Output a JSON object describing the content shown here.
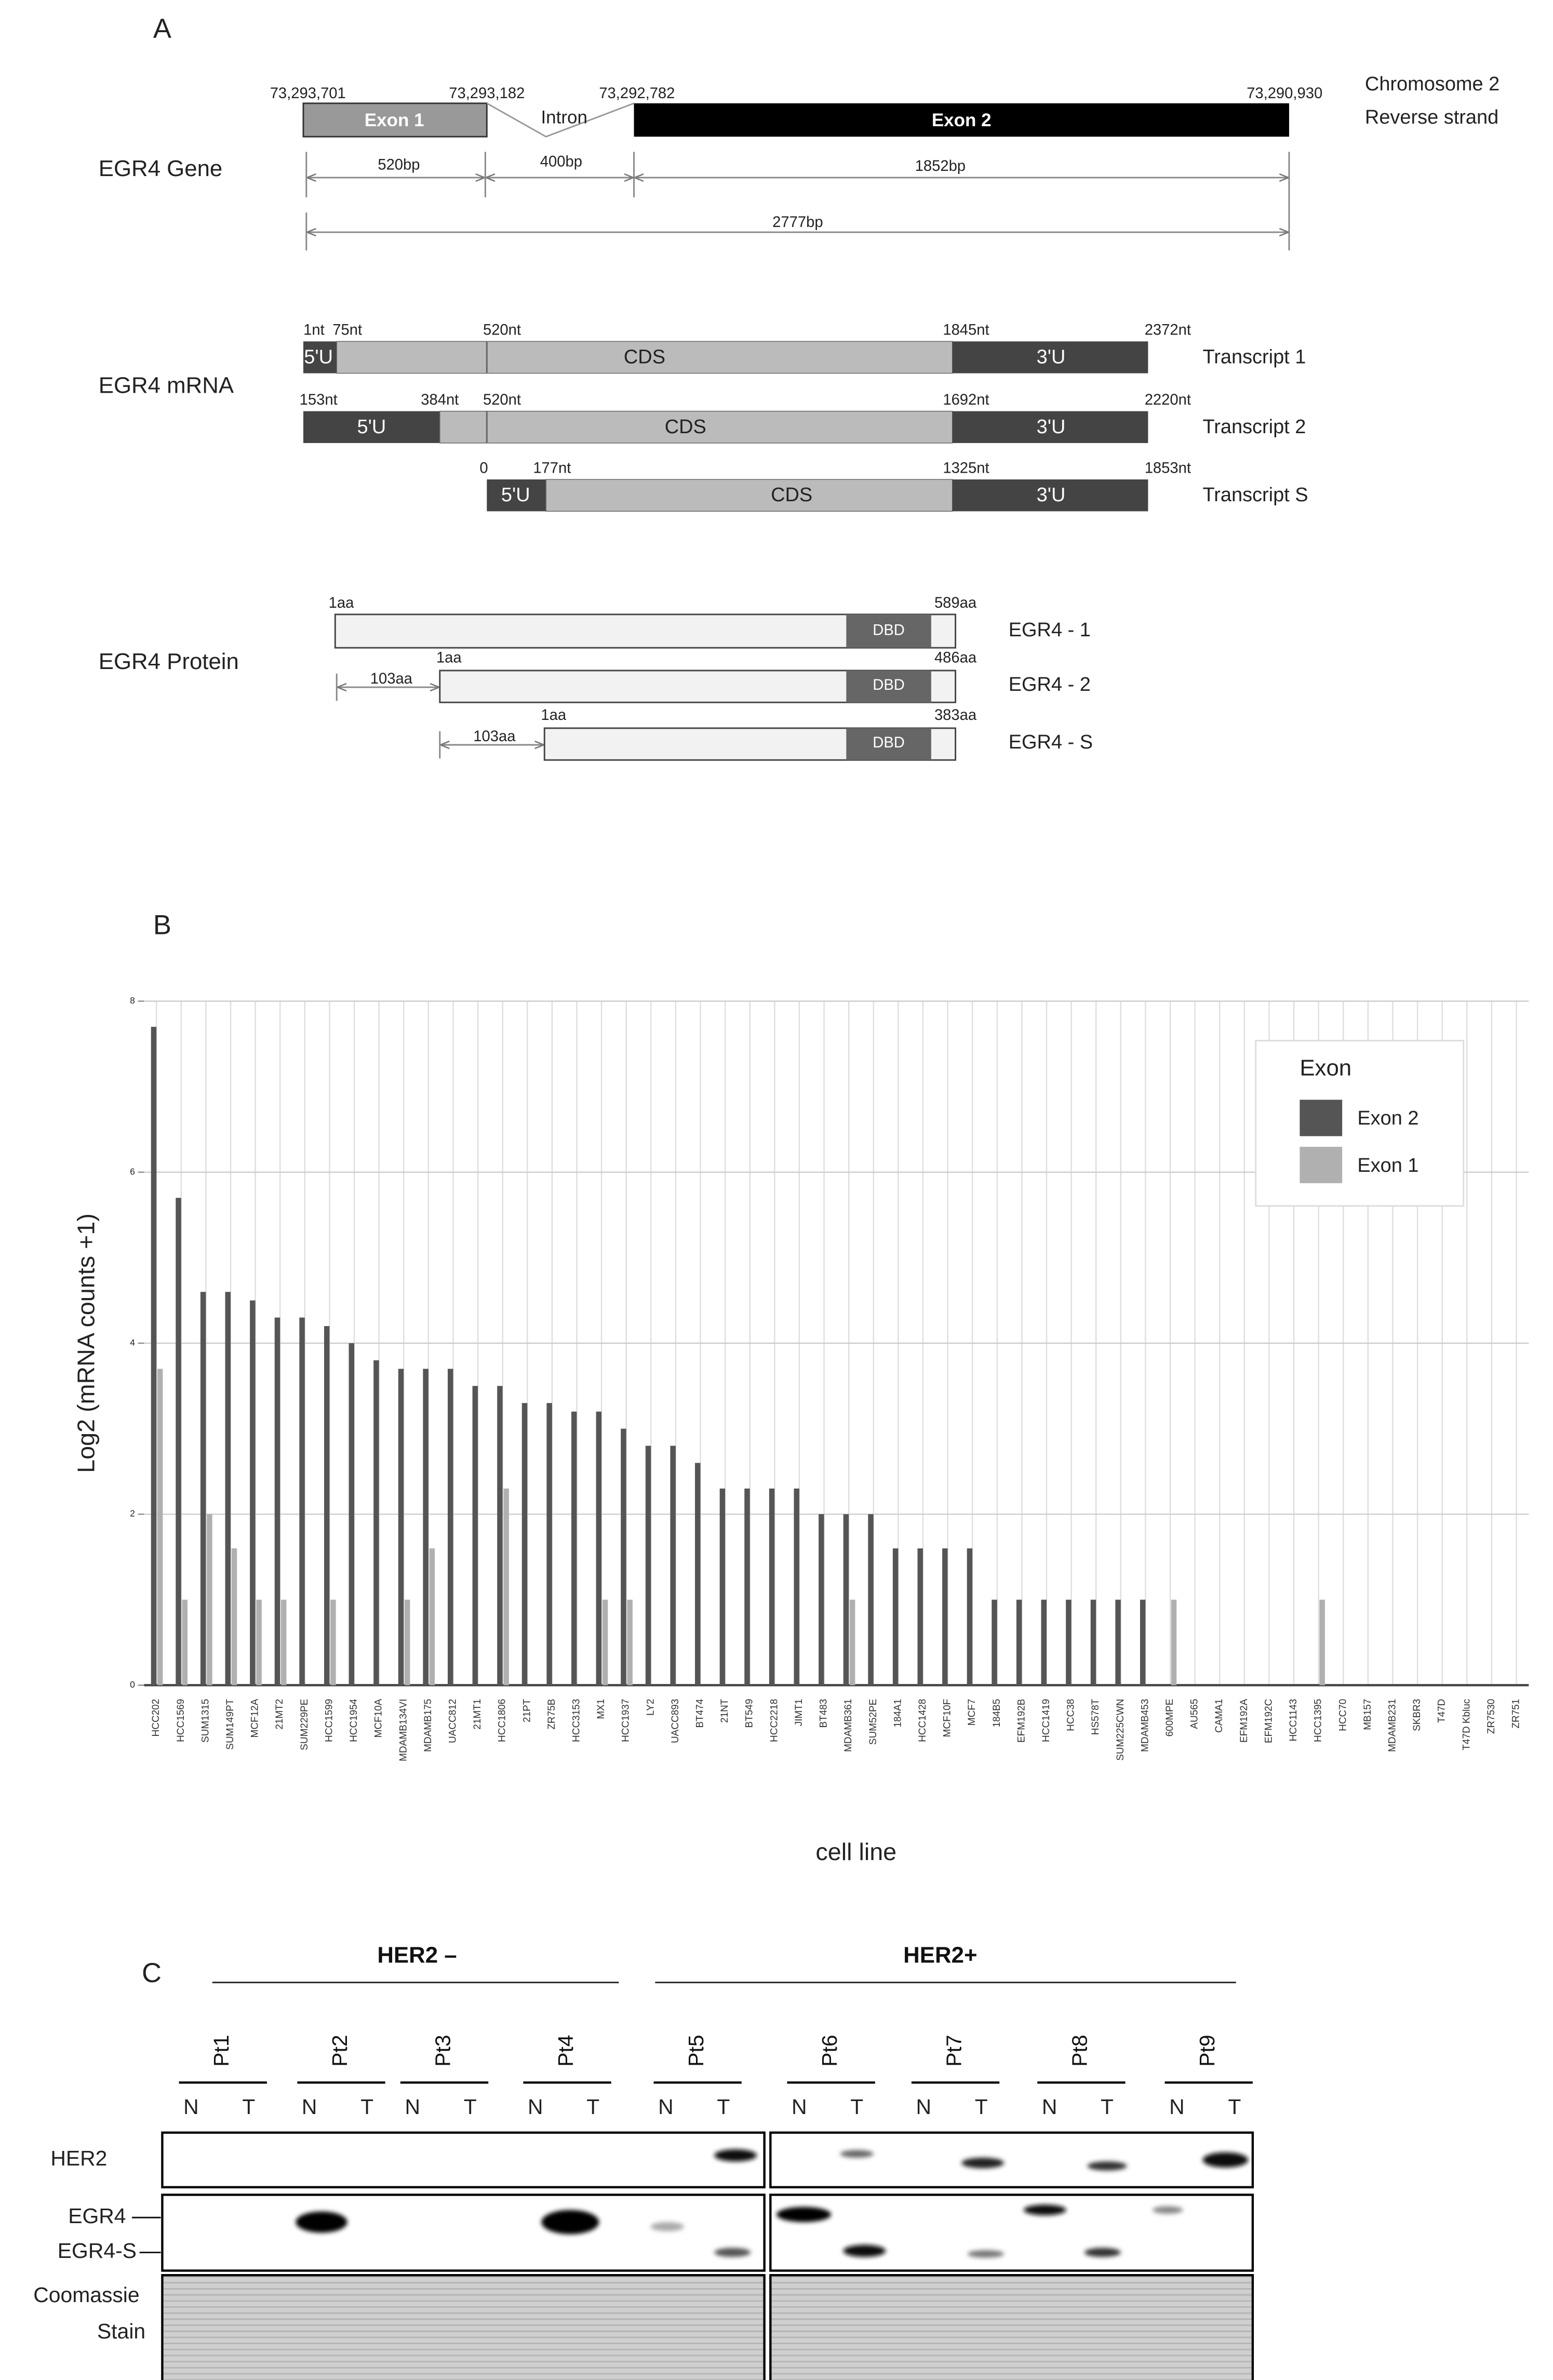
{
  "panel_a": {
    "label": "A",
    "gene": {
      "title": "EGR4 Gene",
      "coordinates": [
        "73,293,701",
        "73,293,182",
        "73,292,782",
        "73,290,930"
      ],
      "exons": [
        "Exon 1",
        "Intron",
        "Exon 2"
      ],
      "strand": [
        "Chromosome 2",
        "Reverse strand"
      ],
      "lengths": [
        "520bp",
        "400bp",
        "1852bp",
        "2777bp"
      ]
    },
    "mrna": {
      "title": "EGR4 mRNA",
      "transcripts": [
        {
          "name": "Transcript 1",
          "positions": [
            "1nt",
            "75nt",
            "520nt",
            "1845nt",
            "2372nt"
          ],
          "segments": [
            "5'U",
            "CDS",
            "3'U"
          ]
        },
        {
          "name": "Transcript 2",
          "positions": [
            "153nt",
            "384nt",
            "520nt",
            "1692nt",
            "2220nt"
          ],
          "segments": [
            "5'U",
            "CDS",
            "3'U"
          ]
        },
        {
          "name": "Transcript S",
          "positions": [
            "0",
            "177nt",
            "1325nt",
            "1853nt"
          ],
          "segments": [
            "5'U",
            "CDS",
            "3'U"
          ]
        }
      ]
    },
    "protein": {
      "title": "EGR4 Protein",
      "isoforms": [
        {
          "name": "EGR4 - 1",
          "labels": [
            "1aa",
            "589aa"
          ],
          "domain": "DBD"
        },
        {
          "name": "EGR4 - 2",
          "offset": "103aa",
          "labels": [
            "1aa",
            "486aa"
          ],
          "domain": "DBD"
        },
        {
          "name": "EGR4 - S",
          "offset": "103aa",
          "labels": [
            "1aa",
            "383aa"
          ],
          "domain": "DBD"
        }
      ]
    }
  },
  "panel_b": {
    "label": "B"
  },
  "chart_data": {
    "type": "bar",
    "ylabel": "Log2  (mRNA counts +1)",
    "xlabel": "cell line",
    "legend_title": "Exon",
    "legend": "top-right",
    "grid": true,
    "ylim": [
      0,
      8
    ],
    "yticks": [
      0,
      2,
      4,
      6,
      8
    ],
    "categories": [
      "HCC202",
      "HCC1569",
      "SUM1315",
      "SUM149PT",
      "MCF12A",
      "21MT2",
      "SUM229PE",
      "HCC1599",
      "HCC1954",
      "MCF10A",
      "MDAMB134VI",
      "MDAMB175",
      "UACC812",
      "21MT1",
      "HCC1806",
      "21PT",
      "ZR75B",
      "HCC3153",
      "MX1",
      "HCC1937",
      "LY2",
      "UACC893",
      "BT474",
      "21NT",
      "BT549",
      "HCC2218",
      "JIMT1",
      "BT483",
      "MDAMB361",
      "SUM52PE",
      "184A1",
      "HCC1428",
      "MCF10F",
      "MCF7",
      "184B5",
      "EFM192B",
      "HCC1419",
      "HCC38",
      "HS578T",
      "SUM225CWN",
      "MDAMB453",
      "600MPE",
      "AU565",
      "CAMA1",
      "EFM192A",
      "EFM192C",
      "HCC1143",
      "HCC1395",
      "HCC70",
      "MB157",
      "MDAMB231",
      "SKBR3",
      "T47D",
      "T47D Kbluc",
      "ZR7530",
      "ZR751"
    ],
    "series": [
      {
        "name": "Exon 2",
        "color": "#555555",
        "values": [
          7.7,
          5.7,
          4.6,
          4.6,
          4.5,
          4.3,
          4.3,
          4.2,
          4.0,
          3.8,
          3.7,
          3.7,
          3.7,
          3.5,
          3.5,
          3.3,
          3.3,
          3.2,
          3.2,
          3.0,
          2.8,
          2.8,
          2.6,
          2.3,
          2.3,
          2.3,
          2.3,
          2.0,
          2.0,
          2.0,
          1.6,
          1.6,
          1.6,
          1.6,
          1.0,
          1.0,
          1.0,
          1.0,
          1.0,
          1.0,
          1.0,
          0,
          0,
          0,
          0,
          0,
          0,
          0,
          0,
          0,
          0,
          0,
          0,
          0,
          0,
          0
        ]
      },
      {
        "name": "Exon 1",
        "color": "#b0b0b0",
        "values": [
          3.7,
          1.0,
          2.0,
          1.6,
          1.0,
          1.0,
          0,
          1.0,
          0,
          0,
          1.0,
          1.6,
          0,
          0,
          2.3,
          0,
          0,
          0,
          1.0,
          1.0,
          0,
          0,
          0,
          0,
          0,
          0,
          0,
          0,
          1.0,
          0,
          0,
          0,
          0,
          0,
          0,
          0,
          0,
          0,
          0,
          0,
          0,
          1.0,
          0,
          0,
          0,
          0,
          0,
          1.0,
          0,
          0,
          0,
          0,
          0,
          0,
          0,
          0
        ]
      }
    ]
  },
  "panel_c": {
    "label": "C",
    "groups": [
      "HER2 –",
      "HER2+"
    ],
    "patients": [
      {
        "name": "Pt1",
        "lanes": [
          "N",
          "T"
        ]
      },
      {
        "name": "Pt2",
        "lanes": [
          "N",
          "T"
        ]
      },
      {
        "name": "Pt3",
        "lanes": [
          "N",
          "T"
        ]
      },
      {
        "name": "Pt4",
        "lanes": [
          "N",
          "T"
        ]
      },
      {
        "name": "Pt5",
        "lanes": [
          "N",
          "T"
        ]
      },
      {
        "name": "Pt6",
        "lanes": [
          "N",
          "T"
        ]
      },
      {
        "name": "Pt7",
        "lanes": [
          "N",
          "T"
        ]
      },
      {
        "name": "Pt8",
        "lanes": [
          "N",
          "T"
        ]
      },
      {
        "name": "Pt9",
        "lanes": [
          "N",
          "T"
        ]
      }
    ],
    "rows": {
      "her2": "HER2",
      "egr4": "EGR4",
      "egr4s": "EGR4-S",
      "stain": [
        "Coomassie",
        "Stain"
      ]
    }
  }
}
